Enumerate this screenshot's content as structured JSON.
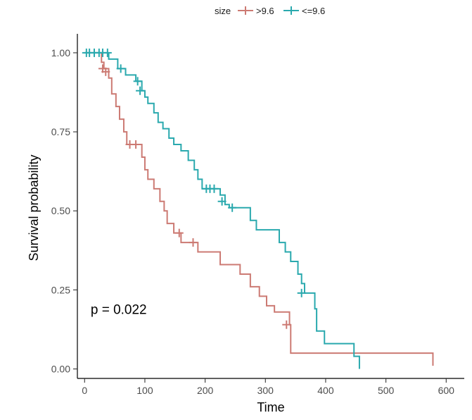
{
  "chart_data": {
    "type": "line",
    "subtype": "kaplan-meier step",
    "title": "",
    "xlabel": "Time",
    "ylabel": "Survival probability",
    "xlim": [
      -12,
      630
    ],
    "ylim": [
      -0.03,
      1.06
    ],
    "x_ticks": [
      0,
      100,
      200,
      300,
      400,
      500,
      600
    ],
    "y_ticks": [
      0.0,
      0.25,
      0.5,
      0.75,
      1.0
    ],
    "y_tick_labels": [
      "0.00",
      "0.25",
      "0.50",
      "0.75",
      "1.00"
    ],
    "grid": false,
    "legend": {
      "position": "top",
      "title": "size",
      "entries": [
        ">9.6",
        "<=9.6"
      ]
    },
    "annotation": {
      "text": "p = 0.022",
      "x": 10,
      "y": 0.19
    },
    "series": [
      {
        "name": ">9.6",
        "color": "#cc7a73",
        "steps": [
          [
            0,
            1.0
          ],
          [
            28,
            0.97
          ],
          [
            32,
            0.95
          ],
          [
            40,
            0.92
          ],
          [
            45,
            0.87
          ],
          [
            52,
            0.83
          ],
          [
            58,
            0.79
          ],
          [
            65,
            0.75
          ],
          [
            70,
            0.71
          ],
          [
            88,
            0.71
          ],
          [
            95,
            0.67
          ],
          [
            100,
            0.63
          ],
          [
            105,
            0.6
          ],
          [
            115,
            0.57
          ],
          [
            125,
            0.53
          ],
          [
            132,
            0.5
          ],
          [
            137,
            0.46
          ],
          [
            148,
            0.43
          ],
          [
            160,
            0.4
          ],
          [
            175,
            0.4
          ],
          [
            188,
            0.37
          ],
          [
            225,
            0.33
          ],
          [
            258,
            0.3
          ],
          [
            275,
            0.26
          ],
          [
            290,
            0.23
          ],
          [
            302,
            0.2
          ],
          [
            315,
            0.18
          ],
          [
            340,
            0.14
          ],
          [
            342,
            0.05
          ],
          [
            578,
            0.05
          ],
          [
            578,
            0.01
          ]
        ],
        "censored": [
          [
            30,
            0.95
          ],
          [
            35,
            0.94
          ],
          [
            75,
            0.71
          ],
          [
            85,
            0.71
          ],
          [
            157,
            0.43
          ],
          [
            180,
            0.4
          ],
          [
            335,
            0.14
          ]
        ]
      },
      {
        "name": "<=9.6",
        "color": "#2aa9ae",
        "steps": [
          [
            0,
            1.0
          ],
          [
            40,
            0.98
          ],
          [
            55,
            0.95
          ],
          [
            68,
            0.93
          ],
          [
            85,
            0.91
          ],
          [
            95,
            0.88
          ],
          [
            100,
            0.86
          ],
          [
            105,
            0.84
          ],
          [
            115,
            0.81
          ],
          [
            122,
            0.78
          ],
          [
            130,
            0.76
          ],
          [
            140,
            0.73
          ],
          [
            148,
            0.71
          ],
          [
            160,
            0.69
          ],
          [
            172,
            0.66
          ],
          [
            182,
            0.63
          ],
          [
            188,
            0.6
          ],
          [
            195,
            0.57
          ],
          [
            215,
            0.57
          ],
          [
            225,
            0.55
          ],
          [
            233,
            0.52
          ],
          [
            240,
            0.51
          ],
          [
            260,
            0.51
          ],
          [
            275,
            0.47
          ],
          [
            285,
            0.44
          ],
          [
            317,
            0.44
          ],
          [
            323,
            0.4
          ],
          [
            333,
            0.37
          ],
          [
            342,
            0.34
          ],
          [
            354,
            0.3
          ],
          [
            360,
            0.27
          ],
          [
            365,
            0.24
          ],
          [
            377,
            0.24
          ],
          [
            382,
            0.19
          ],
          [
            385,
            0.12
          ],
          [
            398,
            0.08
          ],
          [
            443,
            0.08
          ],
          [
            447,
            0.04
          ],
          [
            456,
            0.04
          ],
          [
            456,
            0.0
          ]
        ],
        "censored": [
          [
            3,
            1.0
          ],
          [
            8,
            1.0
          ],
          [
            16,
            1.0
          ],
          [
            24,
            1.0
          ],
          [
            30,
            1.0
          ],
          [
            38,
            1.0
          ],
          [
            60,
            0.95
          ],
          [
            88,
            0.91
          ],
          [
            92,
            0.88
          ],
          [
            202,
            0.57
          ],
          [
            208,
            0.57
          ],
          [
            215,
            0.57
          ],
          [
            228,
            0.53
          ],
          [
            245,
            0.51
          ],
          [
            360,
            0.24
          ]
        ]
      }
    ]
  }
}
